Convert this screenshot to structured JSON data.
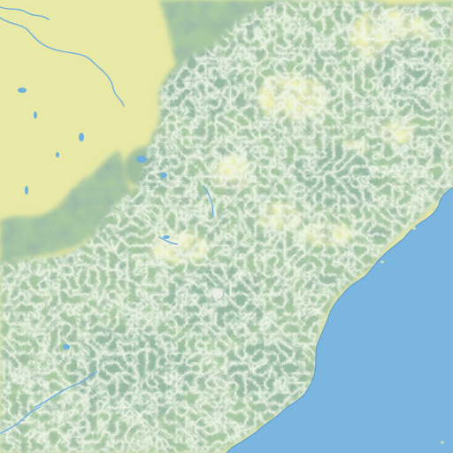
{
  "map": {
    "kind": "shaded-relief terrain map",
    "labels": [],
    "colors": {
      "lowland": "#e8e9a6",
      "lowland_light": "#eef0b8",
      "upland": "#cfe0b0",
      "forest": "#a9c9a2",
      "mountain": "#94b9a0",
      "mountain_dark": "#7fa88f",
      "ridge_shadow": "#5f876f",
      "ridge_light": "#d8e7c8",
      "peak": "#e9ece6",
      "sea": "#7ab6e0",
      "sea_shallow": "#8cc2e6",
      "river": "#6fb0dd",
      "coast_line": "#5f9fcf"
    }
  }
}
